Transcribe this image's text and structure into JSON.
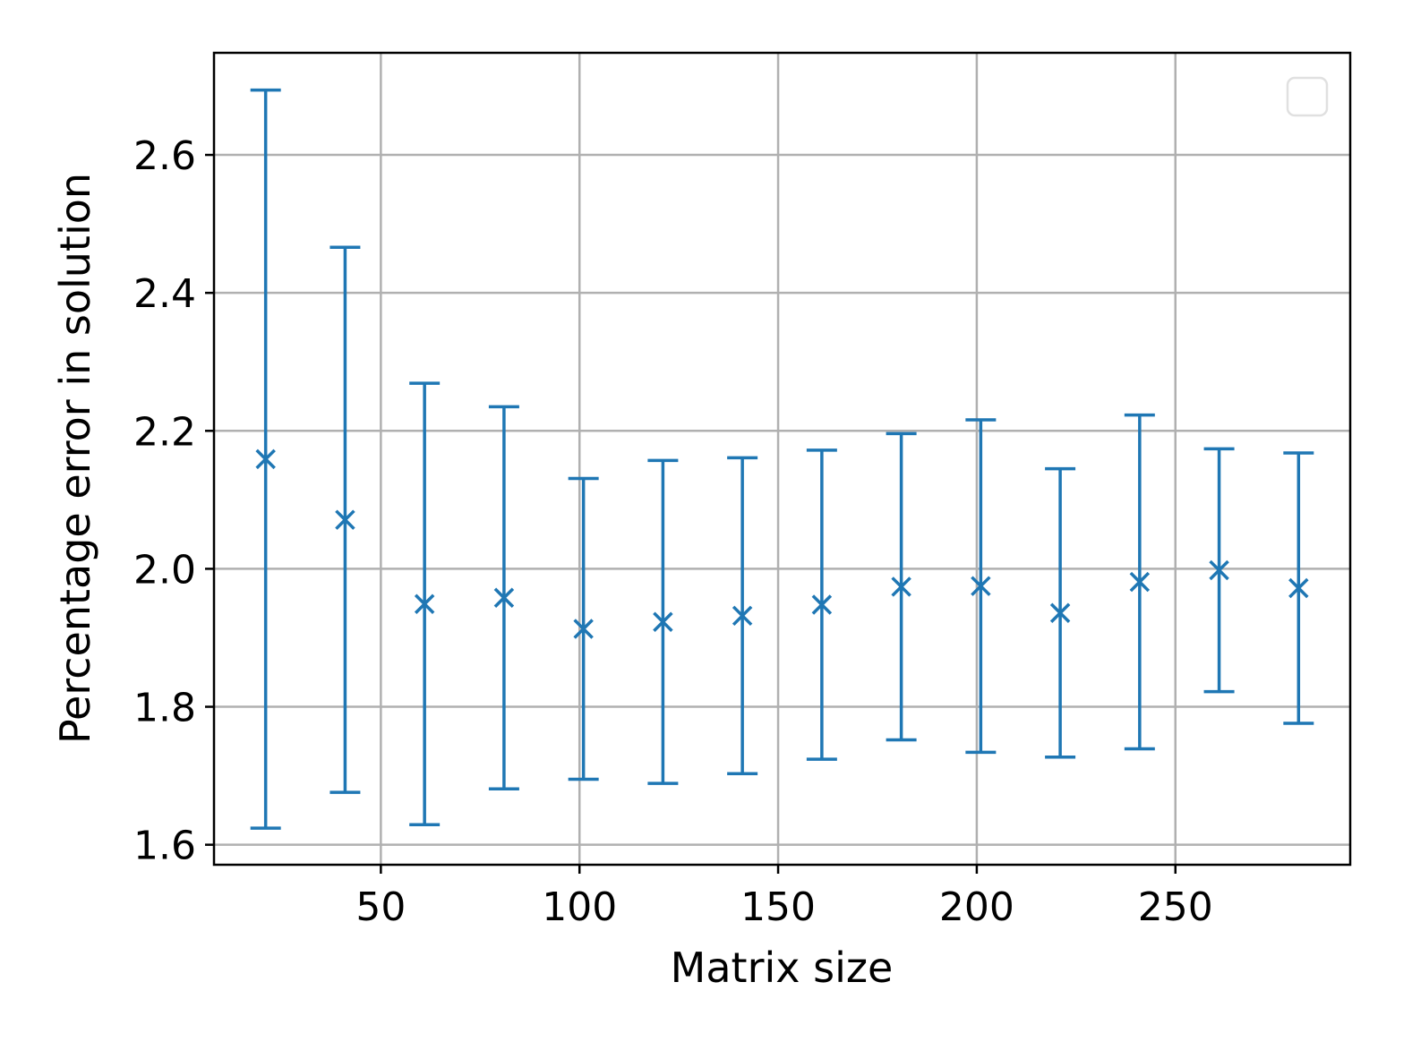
{
  "chart_data": {
    "type": "errorbar",
    "xlabel": "Matrix size",
    "ylabel": "Percentage error in solution",
    "x": [
      21,
      41,
      61,
      81,
      101,
      121,
      141,
      161,
      181,
      201,
      221,
      241,
      261,
      281
    ],
    "values": [
      2.159,
      2.071,
      1.949,
      1.958,
      1.913,
      1.923,
      1.932,
      1.948,
      1.974,
      1.975,
      1.936,
      1.981,
      1.998,
      1.972
    ],
    "errors": [
      0.535,
      0.395,
      0.32,
      0.277,
      0.218,
      0.234,
      0.229,
      0.224,
      0.222,
      0.241,
      0.209,
      0.242,
      0.176,
      0.196
    ],
    "color": "#1f77b4",
    "xlim": [
      8,
      294
    ],
    "xticks": [
      50,
      100,
      150,
      200,
      250
    ],
    "ylim": [
      1.571,
      2.748
    ],
    "yticks": [
      1.6,
      1.8,
      {
        "value": 2,
        "label": "2.0"
      },
      2.2,
      2.4,
      2.6
    ],
    "grid": true,
    "legend": "upper right"
  }
}
